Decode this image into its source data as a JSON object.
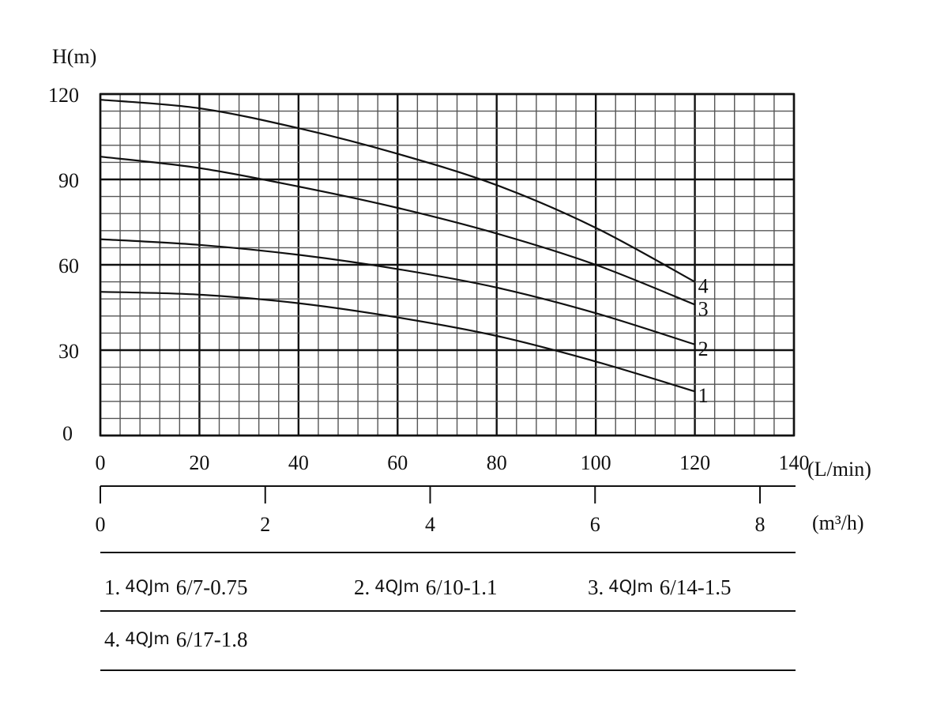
{
  "chart_data": {
    "type": "line",
    "title": "",
    "ylabel": "H(m)",
    "xlabel": "(L/min)",
    "x2label": "(m³/h)",
    "xlim": [
      0,
      140
    ],
    "ylim": [
      0,
      120
    ],
    "x_ticks": [
      0,
      20,
      40,
      60,
      80,
      100,
      120,
      140
    ],
    "y_ticks": [
      0,
      30,
      60,
      90,
      120
    ],
    "x2_ticks": [
      0,
      2,
      4,
      6,
      8
    ],
    "grid": true,
    "grid_minor_x": 4,
    "grid_minor_y": 6,
    "line_color": "#111111",
    "x": [
      0,
      20,
      40,
      60,
      80,
      100,
      120
    ],
    "series": [
      {
        "name": "1",
        "values": [
          50.5,
          49.5,
          46.5,
          41.5,
          35,
          26,
          15.5
        ]
      },
      {
        "name": "2",
        "values": [
          69,
          67,
          63.5,
          58.5,
          52,
          43,
          32
        ]
      },
      {
        "name": "3",
        "values": [
          98,
          94,
          87.5,
          80,
          71,
          60,
          46
        ]
      },
      {
        "name": "4",
        "values": [
          118,
          115,
          108,
          99,
          88,
          73,
          54
        ]
      }
    ],
    "legend": {
      "placement": "bottom",
      "entries": [
        {
          "num": "1.",
          "model": "4QJm",
          "spec": "6/7-0.75"
        },
        {
          "num": "2.",
          "model": "4QJm",
          "spec": "6/10-1.1"
        },
        {
          "num": "3.",
          "model": "4QJm",
          "spec": "6/14-1.5"
        },
        {
          "num": "4.",
          "model": "4QJm",
          "spec": "6/17-1.8"
        }
      ]
    }
  }
}
